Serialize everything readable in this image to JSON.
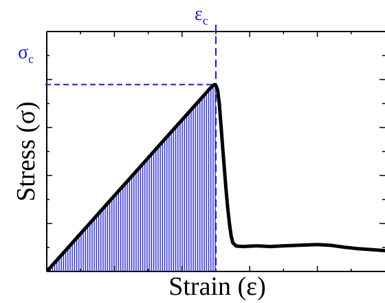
{
  "chart_data": {
    "type": "line",
    "title": "",
    "xlabel": "Strain (ε)",
    "ylabel": "Stress (σ)",
    "xlim": [
      0,
      1
    ],
    "ylim": [
      0,
      1
    ],
    "grid": false,
    "legend": "none",
    "series": [
      {
        "values": [
          [
            0.0,
            0.0
          ],
          [
            0.05,
            0.079
          ],
          [
            0.1,
            0.158
          ],
          [
            0.15,
            0.237
          ],
          [
            0.2,
            0.316
          ],
          [
            0.25,
            0.395
          ],
          [
            0.3,
            0.474
          ],
          [
            0.35,
            0.553
          ],
          [
            0.4,
            0.632
          ],
          [
            0.45,
            0.711
          ],
          [
            0.48,
            0.759
          ],
          [
            0.49,
            0.773
          ],
          [
            0.496,
            0.779
          ],
          [
            0.5,
            0.776
          ],
          [
            0.505,
            0.756
          ],
          [
            0.51,
            0.703
          ],
          [
            0.515,
            0.61
          ],
          [
            0.52,
            0.52
          ],
          [
            0.525,
            0.43
          ],
          [
            0.53,
            0.34
          ],
          [
            0.535,
            0.265
          ],
          [
            0.54,
            0.2
          ],
          [
            0.545,
            0.15
          ],
          [
            0.55,
            0.12
          ],
          [
            0.56,
            0.106
          ],
          [
            0.58,
            0.104
          ],
          [
            0.62,
            0.107
          ],
          [
            0.66,
            0.104
          ],
          [
            0.7,
            0.107
          ],
          [
            0.74,
            0.109
          ],
          [
            0.78,
            0.111
          ],
          [
            0.8,
            0.112
          ],
          [
            0.84,
            0.109
          ],
          [
            0.88,
            0.101
          ],
          [
            0.92,
            0.095
          ],
          [
            0.96,
            0.091
          ],
          [
            1.0,
            0.087
          ]
        ]
      }
    ],
    "critical_strain": 0.5,
    "critical_stress": 0.779,
    "annotations": [
      "ε",
      "c",
      "σ",
      "c"
    ],
    "colors": {
      "curve": "#000000",
      "annotation": "#1a1acc",
      "fill": "#1a1acc"
    }
  }
}
